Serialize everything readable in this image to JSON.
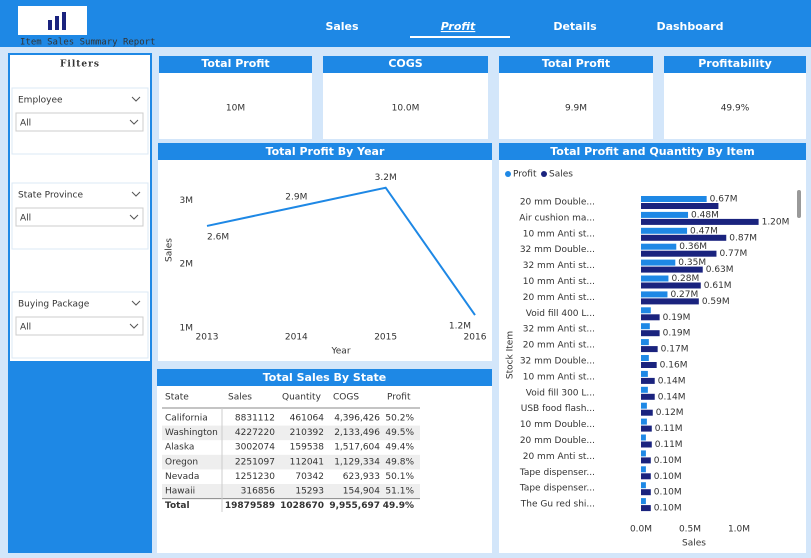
{
  "header": {
    "title": "Item Sales Summary Report",
    "nav": [
      "Sales",
      "Profit",
      "Details",
      "Dashboard"
    ],
    "active_nav": 1
  },
  "filters": {
    "title": "Filters",
    "items": [
      {
        "label": "Employee",
        "value": "All"
      },
      {
        "label": "State Province",
        "value": "All"
      },
      {
        "label": "Buying Package",
        "value": "All"
      }
    ]
  },
  "kpis": [
    {
      "label": "Total Profit",
      "value": "10M"
    },
    {
      "label": "COGS",
      "value": "10.0M"
    },
    {
      "label": "Total Profit",
      "value": "9.9M"
    },
    {
      "label": "Profitability",
      "value": "49.9%"
    }
  ],
  "table": {
    "title": "Total Sales By State",
    "columns": [
      "State",
      "Sales",
      "Quantity",
      "COGS",
      "Profit"
    ],
    "rows": [
      [
        "California",
        "8831112",
        "461064",
        "4,396,426",
        "50.2%"
      ],
      [
        "Washington",
        "4227220",
        "210392",
        "2,133,496",
        "49.5%"
      ],
      [
        "Alaska",
        "3002074",
        "159538",
        "1,517,604",
        "49.4%"
      ],
      [
        "Oregon",
        "2251097",
        "112041",
        "1,129,334",
        "49.8%"
      ],
      [
        "Nevada",
        "1251230",
        "70342",
        "623,933",
        "50.1%"
      ],
      [
        "Hawaii",
        "316856",
        "15293",
        "154,904",
        "51.1%"
      ]
    ],
    "total": [
      "Total",
      "19879589",
      "1028670",
      "9,955,697",
      "49.9%"
    ]
  },
  "chart_data": [
    {
      "type": "line",
      "title": "Total Profit By Year",
      "x_label": "Year",
      "y_label": "Sales",
      "x": [
        2013,
        2014,
        2015,
        2016
      ],
      "xlim": [
        2013,
        2016
      ],
      "xticks": [
        2013,
        2014,
        2015,
        2016
      ],
      "values": [
        2.6,
        2.9,
        3.2,
        1.2
      ],
      "value_labels": [
        "2.6M",
        "2.9M",
        "3.2M",
        "1.2M"
      ],
      "color": "#1e88e5",
      "ylim": [
        0.95,
        3.4
      ],
      "yticks": [
        {
          "value": 1,
          "label": "1M"
        },
        {
          "value": 2,
          "label": "2M"
        },
        {
          "value": 3,
          "label": "3M"
        }
      ]
    },
    {
      "type": "hbar",
      "title": "Total Profit and Quantity By Item",
      "x_label": "Sales",
      "y_label": "Stock Item",
      "legend": "top-left",
      "categories": [
        "20 mm Double...",
        "Air cushion ma...",
        "10 mm Anti st...",
        "32 mm Double...",
        "32 mm Anti st...",
        "10 mm Anti st...",
        "20 mm Anti st...",
        "Void fill 400 L...",
        "32 mm Anti st...",
        "20 mm Anti st...",
        "32 mm Double...",
        "10 mm Anti st...",
        "Void fill 300 L...",
        "USB food flash...",
        "10 mm Double...",
        "20 mm Double...",
        "20 mm Anti st...",
        "Tape dispenser...",
        "Tape dispenser...",
        "The Gu red shi..."
      ],
      "xlim": [
        0,
        1.5
      ],
      "xticks": [
        {
          "value": 0,
          "label": "0.0M"
        },
        {
          "value": 0.5,
          "label": "0.5M"
        },
        {
          "value": 1,
          "label": "1.0M"
        }
      ],
      "series": [
        {
          "name": "Profit",
          "color": "#1e88e5",
          "values": [
            0.67,
            0.48,
            0.47,
            0.36,
            0.35,
            0.28,
            0.27,
            0.1,
            0.09,
            0.08,
            0.08,
            0.07,
            0.07,
            0.06,
            0.06,
            0.05,
            0.05,
            0.05,
            0.05,
            0.05
          ],
          "value_labels": [
            "0.67M",
            "0.48M",
            "0.47M",
            "0.36M",
            "0.35M",
            "0.28M",
            "0.27M",
            null,
            null,
            null,
            null,
            null,
            null,
            null,
            null,
            null,
            null,
            null,
            null,
            null
          ]
        },
        {
          "name": "Sales",
          "color": "#1a237e",
          "values": [
            0.79,
            1.2,
            0.87,
            0.77,
            0.63,
            0.61,
            0.59,
            0.19,
            0.19,
            0.17,
            0.16,
            0.14,
            0.14,
            0.12,
            0.11,
            0.11,
            0.1,
            0.1,
            0.1,
            0.1
          ],
          "value_labels": [
            null,
            "1.20M",
            "0.87M",
            "0.77M",
            "0.63M",
            "0.61M",
            "0.59M",
            "0.19M",
            "0.19M",
            "0.17M",
            "0.16M",
            "0.14M",
            "0.14M",
            "0.12M",
            "0.11M",
            "0.11M",
            "0.10M",
            "0.10M",
            "0.10M",
            "0.10M"
          ]
        }
      ]
    }
  ]
}
